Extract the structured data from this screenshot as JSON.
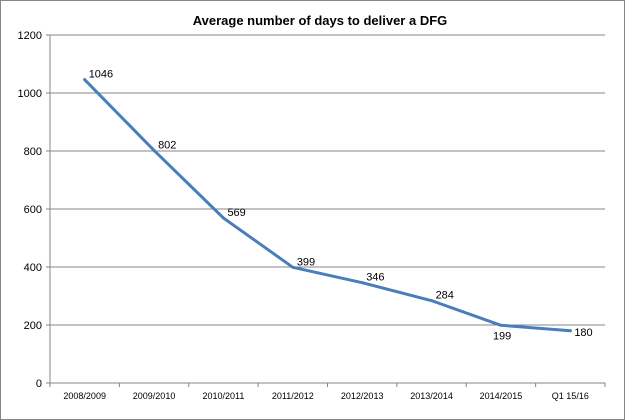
{
  "chart_data": {
    "type": "line",
    "title": "Average number of days to deliver a DFG",
    "xlabel": "",
    "ylabel": "",
    "categories": [
      "2008/2009",
      "2009/2010",
      "2010/2011",
      "2011/2012",
      "2012/2013",
      "2013/2014",
      "2014/2015",
      "Q1 15/16"
    ],
    "series": [
      {
        "name": "Average number of days",
        "values": [
          1046,
          802,
          569,
          399,
          346,
          284,
          199,
          180
        ]
      }
    ],
    "data_labels": [
      "1046",
      "802",
      "569",
      "399",
      "346",
      "284",
      "199",
      "180"
    ],
    "ylim": [
      0,
      1200
    ],
    "yticks": [
      0,
      200,
      400,
      600,
      800,
      1000,
      1200
    ],
    "ytick_labels": [
      "0",
      "200",
      "400",
      "600",
      "800",
      "1000",
      "1200"
    ],
    "grid": true,
    "legend": "none",
    "line_color": "#4a7ebb",
    "grid_color": "#868686"
  }
}
